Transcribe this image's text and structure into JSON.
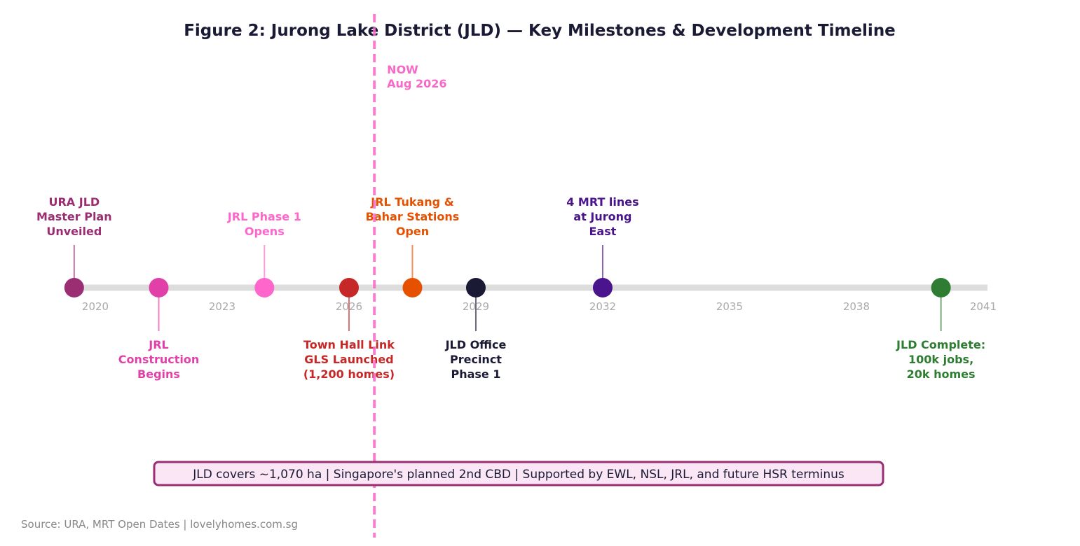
{
  "chart_data": {
    "type": "timeline",
    "title": "Figure 2: Jurong Lake District (JLD) — Key Milestones & Development Timeline",
    "xlim": [
      2018.6,
      2041.5
    ],
    "ticks": [
      "2020",
      "2023",
      "2026",
      "2029",
      "2032",
      "2035",
      "2038",
      "2041"
    ],
    "tick_values": [
      2020,
      2023,
      2026,
      2029,
      2032,
      2035,
      2038,
      2041
    ],
    "grid": false,
    "now_marker": {
      "x": 2026.6,
      "lines": [
        "NOW",
        "Aug 2026"
      ],
      "color": "#f768c8"
    },
    "milestones": [
      {
        "x": 2019.5,
        "lines": [
          "URA JLD",
          "Master Plan",
          "Unveiled"
        ],
        "side": "above",
        "color": "#9b2d72"
      },
      {
        "x": 2021.5,
        "lines": [
          "JRL",
          "Construction",
          "Begins"
        ],
        "side": "below",
        "color": "#e040a8"
      },
      {
        "x": 2024.0,
        "lines": [
          "JRL Phase 1",
          "Opens"
        ],
        "side": "above",
        "color": "#ff66cc"
      },
      {
        "x": 2026.0,
        "lines": [
          "Town Hall Link",
          "GLS Launched",
          "(1,200 homes)"
        ],
        "side": "below",
        "color": "#c62828"
      },
      {
        "x": 2027.5,
        "lines": [
          "JRL Tukang &",
          "Bahar Stations",
          "Open"
        ],
        "side": "above",
        "color": "#e65100"
      },
      {
        "x": 2029.0,
        "lines": [
          "JLD Office",
          "Precinct",
          "Phase 1"
        ],
        "side": "below",
        "color": "#1a1a35"
      },
      {
        "x": 2032.0,
        "lines": [
          "4 MRT lines",
          "at Jurong",
          "East"
        ],
        "side": "above",
        "color": "#4a148c"
      },
      {
        "x": 2040.0,
        "lines": [
          "JLD Complete:",
          "100k jobs,",
          "20k homes"
        ],
        "side": "below",
        "color": "#2e7d32"
      }
    ],
    "annotation": "JLD covers ~1,070 ha | Singapore's planned 2nd CBD | Supported by EWL, NSL, JRL, and future HSR terminus",
    "source": "Source: URA, MRT Open Dates | lovelyhomes.com.sg"
  }
}
